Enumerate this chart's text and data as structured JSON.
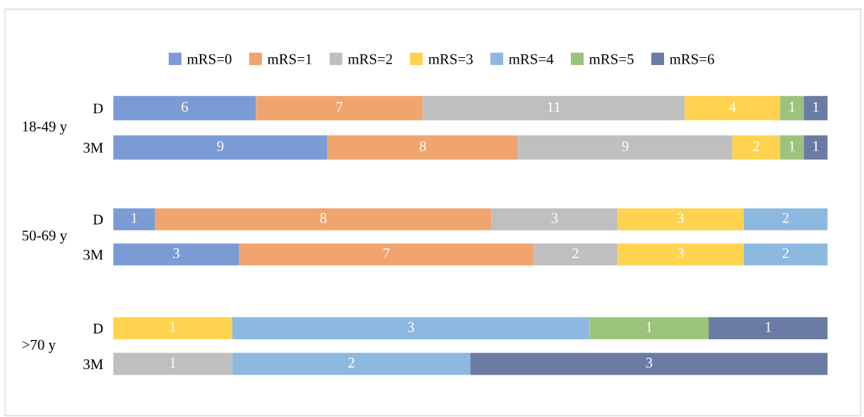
{
  "chart_data": [
    {
      "type": "bar",
      "orientation": "horizontal",
      "stacked": true,
      "data_labels": true,
      "legend": "top",
      "ylabel": "18-49 y",
      "categories": [
        "D",
        "3M"
      ],
      "series": [
        {
          "name": "mRS=0",
          "color": "#7b9bd5",
          "values": [
            6,
            9
          ]
        },
        {
          "name": "mRS=1",
          "color": "#f0a46e",
          "values": [
            7,
            8
          ]
        },
        {
          "name": "mRS=2",
          "color": "#bfbfbf",
          "values": [
            11,
            9
          ]
        },
        {
          "name": "mRS=3",
          "color": "#ffd34f",
          "values": [
            4,
            2
          ]
        },
        {
          "name": "mRS=4",
          "color": "#8db8e0",
          "values": [
            null,
            null
          ]
        },
        {
          "name": "mRS=5",
          "color": "#9bc37c",
          "values": [
            1,
            1
          ]
        },
        {
          "name": "mRS=6",
          "color": "#6a7ba4",
          "values": [
            1,
            1
          ]
        }
      ]
    },
    {
      "type": "bar",
      "orientation": "horizontal",
      "stacked": true,
      "data_labels": true,
      "ylabel": "50-69 y",
      "categories": [
        "D",
        "3M"
      ],
      "series": [
        {
          "color": "#7b9bd5",
          "values": [
            1,
            3
          ]
        },
        {
          "color": "#f0a46e",
          "values": [
            8,
            7
          ]
        },
        {
          "color": "#bfbfbf",
          "values": [
            3,
            2
          ]
        },
        {
          "color": "#ffd34f",
          "values": [
            3,
            3
          ]
        },
        {
          "color": "#8db8e0",
          "values": [
            2,
            2
          ]
        }
      ]
    },
    {
      "type": "bar",
      "orientation": "horizontal",
      "stacked": true,
      "data_labels": true,
      "ylabel": ">70 y",
      "categories": [
        "D",
        "3M"
      ],
      "series": [
        {
          "color": "#bfbfbf",
          "values": [
            null,
            1
          ]
        },
        {
          "color": "#ffd34f",
          "values": [
            1,
            null
          ]
        },
        {
          "color": "#8db8e0",
          "values": [
            3,
            2
          ]
        },
        {
          "color": "#9bc37c",
          "values": [
            1,
            null
          ]
        },
        {
          "color": "#6a7ba4",
          "values": [
            1,
            3
          ]
        }
      ]
    }
  ]
}
